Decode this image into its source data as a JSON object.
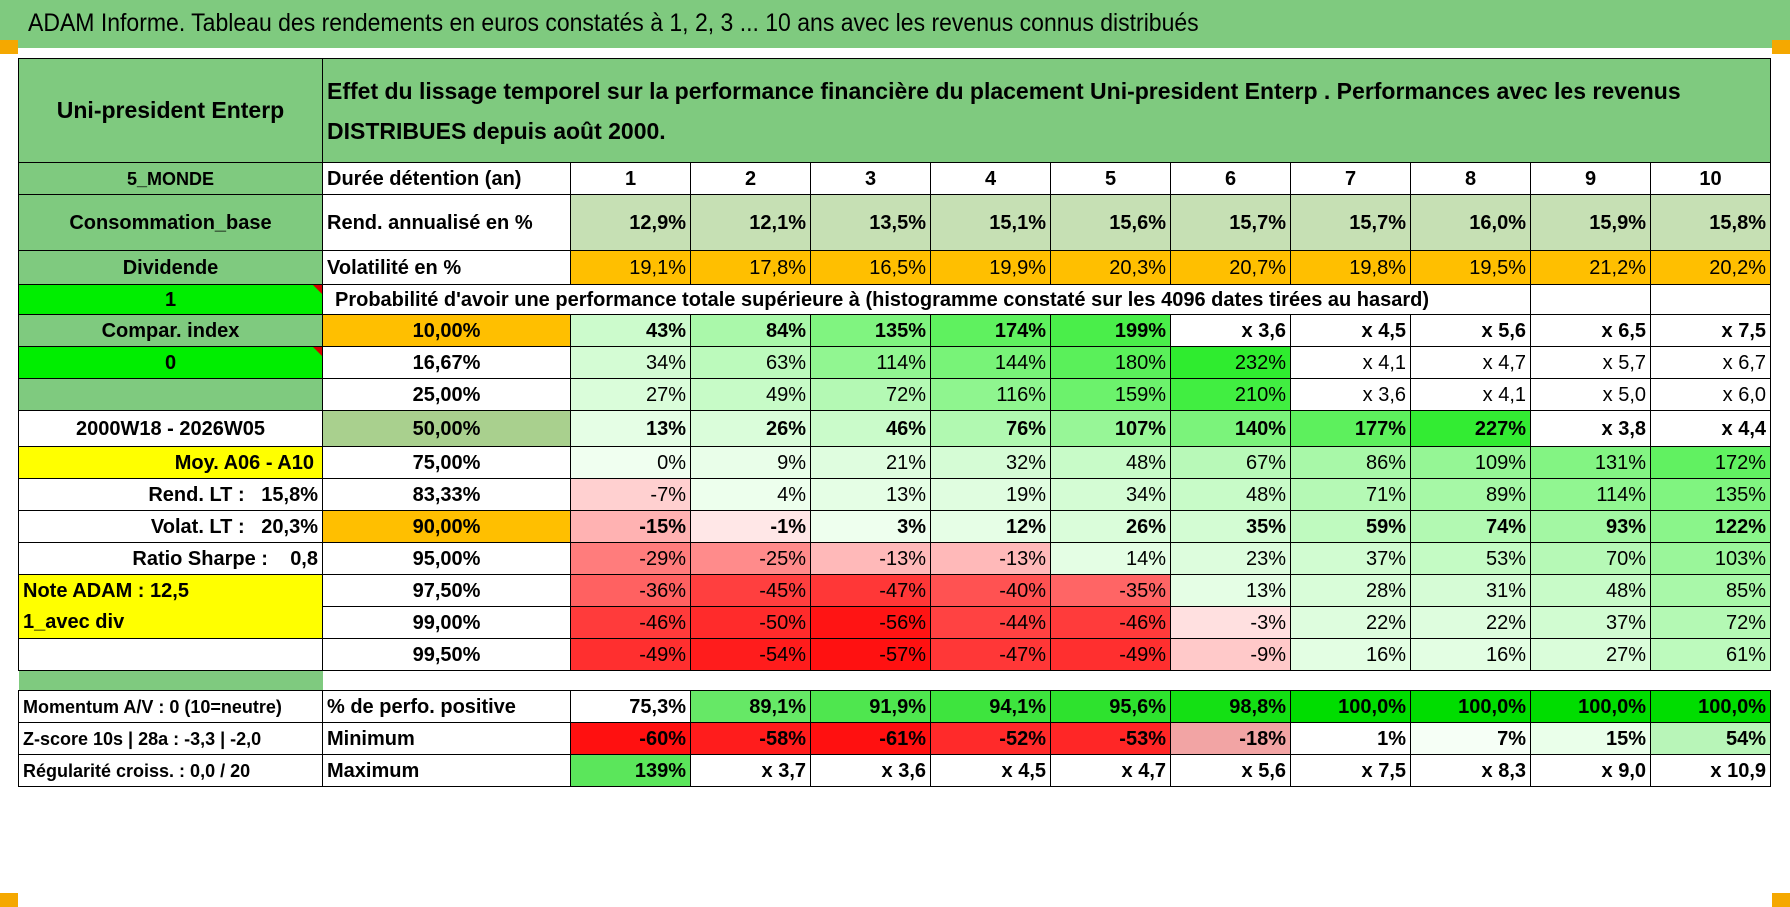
{
  "report_title": "ADAM Informe. Tableau des rendements en euros constatés à 1, 2, 3 ... 10 ans avec les revenus connus distribués",
  "header": {
    "fund_name": "Uni-president Enterp",
    "description": "Effet du lissage temporel sur la performance financière du placement Uni-president Enterp . Performances avec les revenus DISTRIBUES depuis août 2000."
  },
  "side": {
    "region": "5_MONDE",
    "category": "Consommation_base",
    "income_type": "Dividende",
    "field_1": "1",
    "compar_index": "Compar. index",
    "field_0": "0",
    "period": "2000W18 - 2026W05",
    "moy": "Moy. A06 - A10",
    "rend_lt_label": "Rend. LT :",
    "rend_lt_value": "15,8%",
    "volat_lt_label": "Volat. LT :",
    "volat_lt_value": "20,3%",
    "sharpe_label": "Ratio Sharpe :",
    "sharpe_value": "0,8",
    "note_adam": "Note ADAM : 12,5",
    "avec_div": "1_avec div"
  },
  "labels": {
    "duree": "Durée détention (an)",
    "rend": "Rend. annualisé en %",
    "vol": "Volatilité en %",
    "prob_header": "Probabilité d'avoir une performance totale supérieure à (histogramme constaté sur les 4096 dates tirées au hasard)"
  },
  "years": [
    "1",
    "2",
    "3",
    "4",
    "5",
    "6",
    "7",
    "8",
    "9",
    "10"
  ],
  "rend": [
    "12,9%",
    "12,1%",
    "13,5%",
    "15,1%",
    "15,6%",
    "15,7%",
    "15,7%",
    "16,0%",
    "15,9%",
    "15,8%"
  ],
  "vol": [
    "19,1%",
    "17,8%",
    "16,5%",
    "19,9%",
    "20,3%",
    "20,7%",
    "19,8%",
    "19,5%",
    "21,2%",
    "20,2%"
  ],
  "prob_rows": [
    {
      "pct": "10,00%",
      "values": [
        "43%",
        "84%",
        "135%",
        "174%",
        "199%",
        "x 3,6",
        "x 4,5",
        "x 5,6",
        "x 6,5",
        "x 7,5"
      ]
    },
    {
      "pct": "16,67%",
      "values": [
        "34%",
        "63%",
        "114%",
        "144%",
        "180%",
        "232%",
        "x 4,1",
        "x 4,7",
        "x 5,7",
        "x 6,7"
      ]
    },
    {
      "pct": "25,00%",
      "values": [
        "27%",
        "49%",
        "72%",
        "116%",
        "159%",
        "210%",
        "x 3,6",
        "x 4,1",
        "x 5,0",
        "x 6,0"
      ]
    },
    {
      "pct": "50,00%",
      "values": [
        "13%",
        "26%",
        "46%",
        "76%",
        "107%",
        "140%",
        "177%",
        "227%",
        "x 3,8",
        "x 4,4"
      ]
    },
    {
      "pct": "75,00%",
      "values": [
        "0%",
        "9%",
        "21%",
        "32%",
        "48%",
        "67%",
        "86%",
        "109%",
        "131%",
        "172%"
      ]
    },
    {
      "pct": "83,33%",
      "values": [
        "-7%",
        "4%",
        "13%",
        "19%",
        "34%",
        "48%",
        "71%",
        "89%",
        "114%",
        "135%"
      ]
    },
    {
      "pct": "90,00%",
      "values": [
        "-15%",
        "-1%",
        "3%",
        "12%",
        "26%",
        "35%",
        "59%",
        "74%",
        "93%",
        "122%"
      ]
    },
    {
      "pct": "95,00%",
      "values": [
        "-29%",
        "-25%",
        "-13%",
        "-13%",
        "14%",
        "23%",
        "37%",
        "53%",
        "70%",
        "103%"
      ]
    },
    {
      "pct": "97,50%",
      "values": [
        "-36%",
        "-45%",
        "-47%",
        "-40%",
        "-35%",
        "13%",
        "28%",
        "31%",
        "48%",
        "85%"
      ]
    },
    {
      "pct": "99,00%",
      "values": [
        "-46%",
        "-50%",
        "-56%",
        "-44%",
        "-46%",
        "-3%",
        "22%",
        "22%",
        "37%",
        "72%"
      ]
    },
    {
      "pct": "99,50%",
      "values": [
        "-49%",
        "-54%",
        "-57%",
        "-47%",
        "-49%",
        "-9%",
        "16%",
        "16%",
        "27%",
        "61%"
      ]
    }
  ],
  "bottom": {
    "momentum": "Momentum A/V : 0 (10=neutre)",
    "zscore": "Z-score 10s | 28a : -3,3 | -2,0",
    "regularite": "Régularité croiss. : 0,0 / 20",
    "pos_label": "% de perfo. positive",
    "min_label": "Minimum",
    "max_label": "Maximum",
    "pos": [
      "75,3%",
      "89,1%",
      "91,9%",
      "94,1%",
      "95,6%",
      "98,8%",
      "100,0%",
      "100,0%",
      "100,0%",
      "100,0%"
    ],
    "min": [
      "-60%",
      "-58%",
      "-61%",
      "-52%",
      "-53%",
      "-18%",
      "1%",
      "7%",
      "15%",
      "54%"
    ],
    "max": [
      "139%",
      "x 3,7",
      "x 3,6",
      "x 4,5",
      "x 4,7",
      "x 5,6",
      "x 7,5",
      "x 8,3",
      "x 9,0",
      "x 10,9"
    ]
  },
  "colors": {
    "header_green": "#7fca7f",
    "bright_green": "#00ee00",
    "orange": "#ffbf00",
    "yellow": "#ffff00",
    "label_red": "#d40000"
  }
}
